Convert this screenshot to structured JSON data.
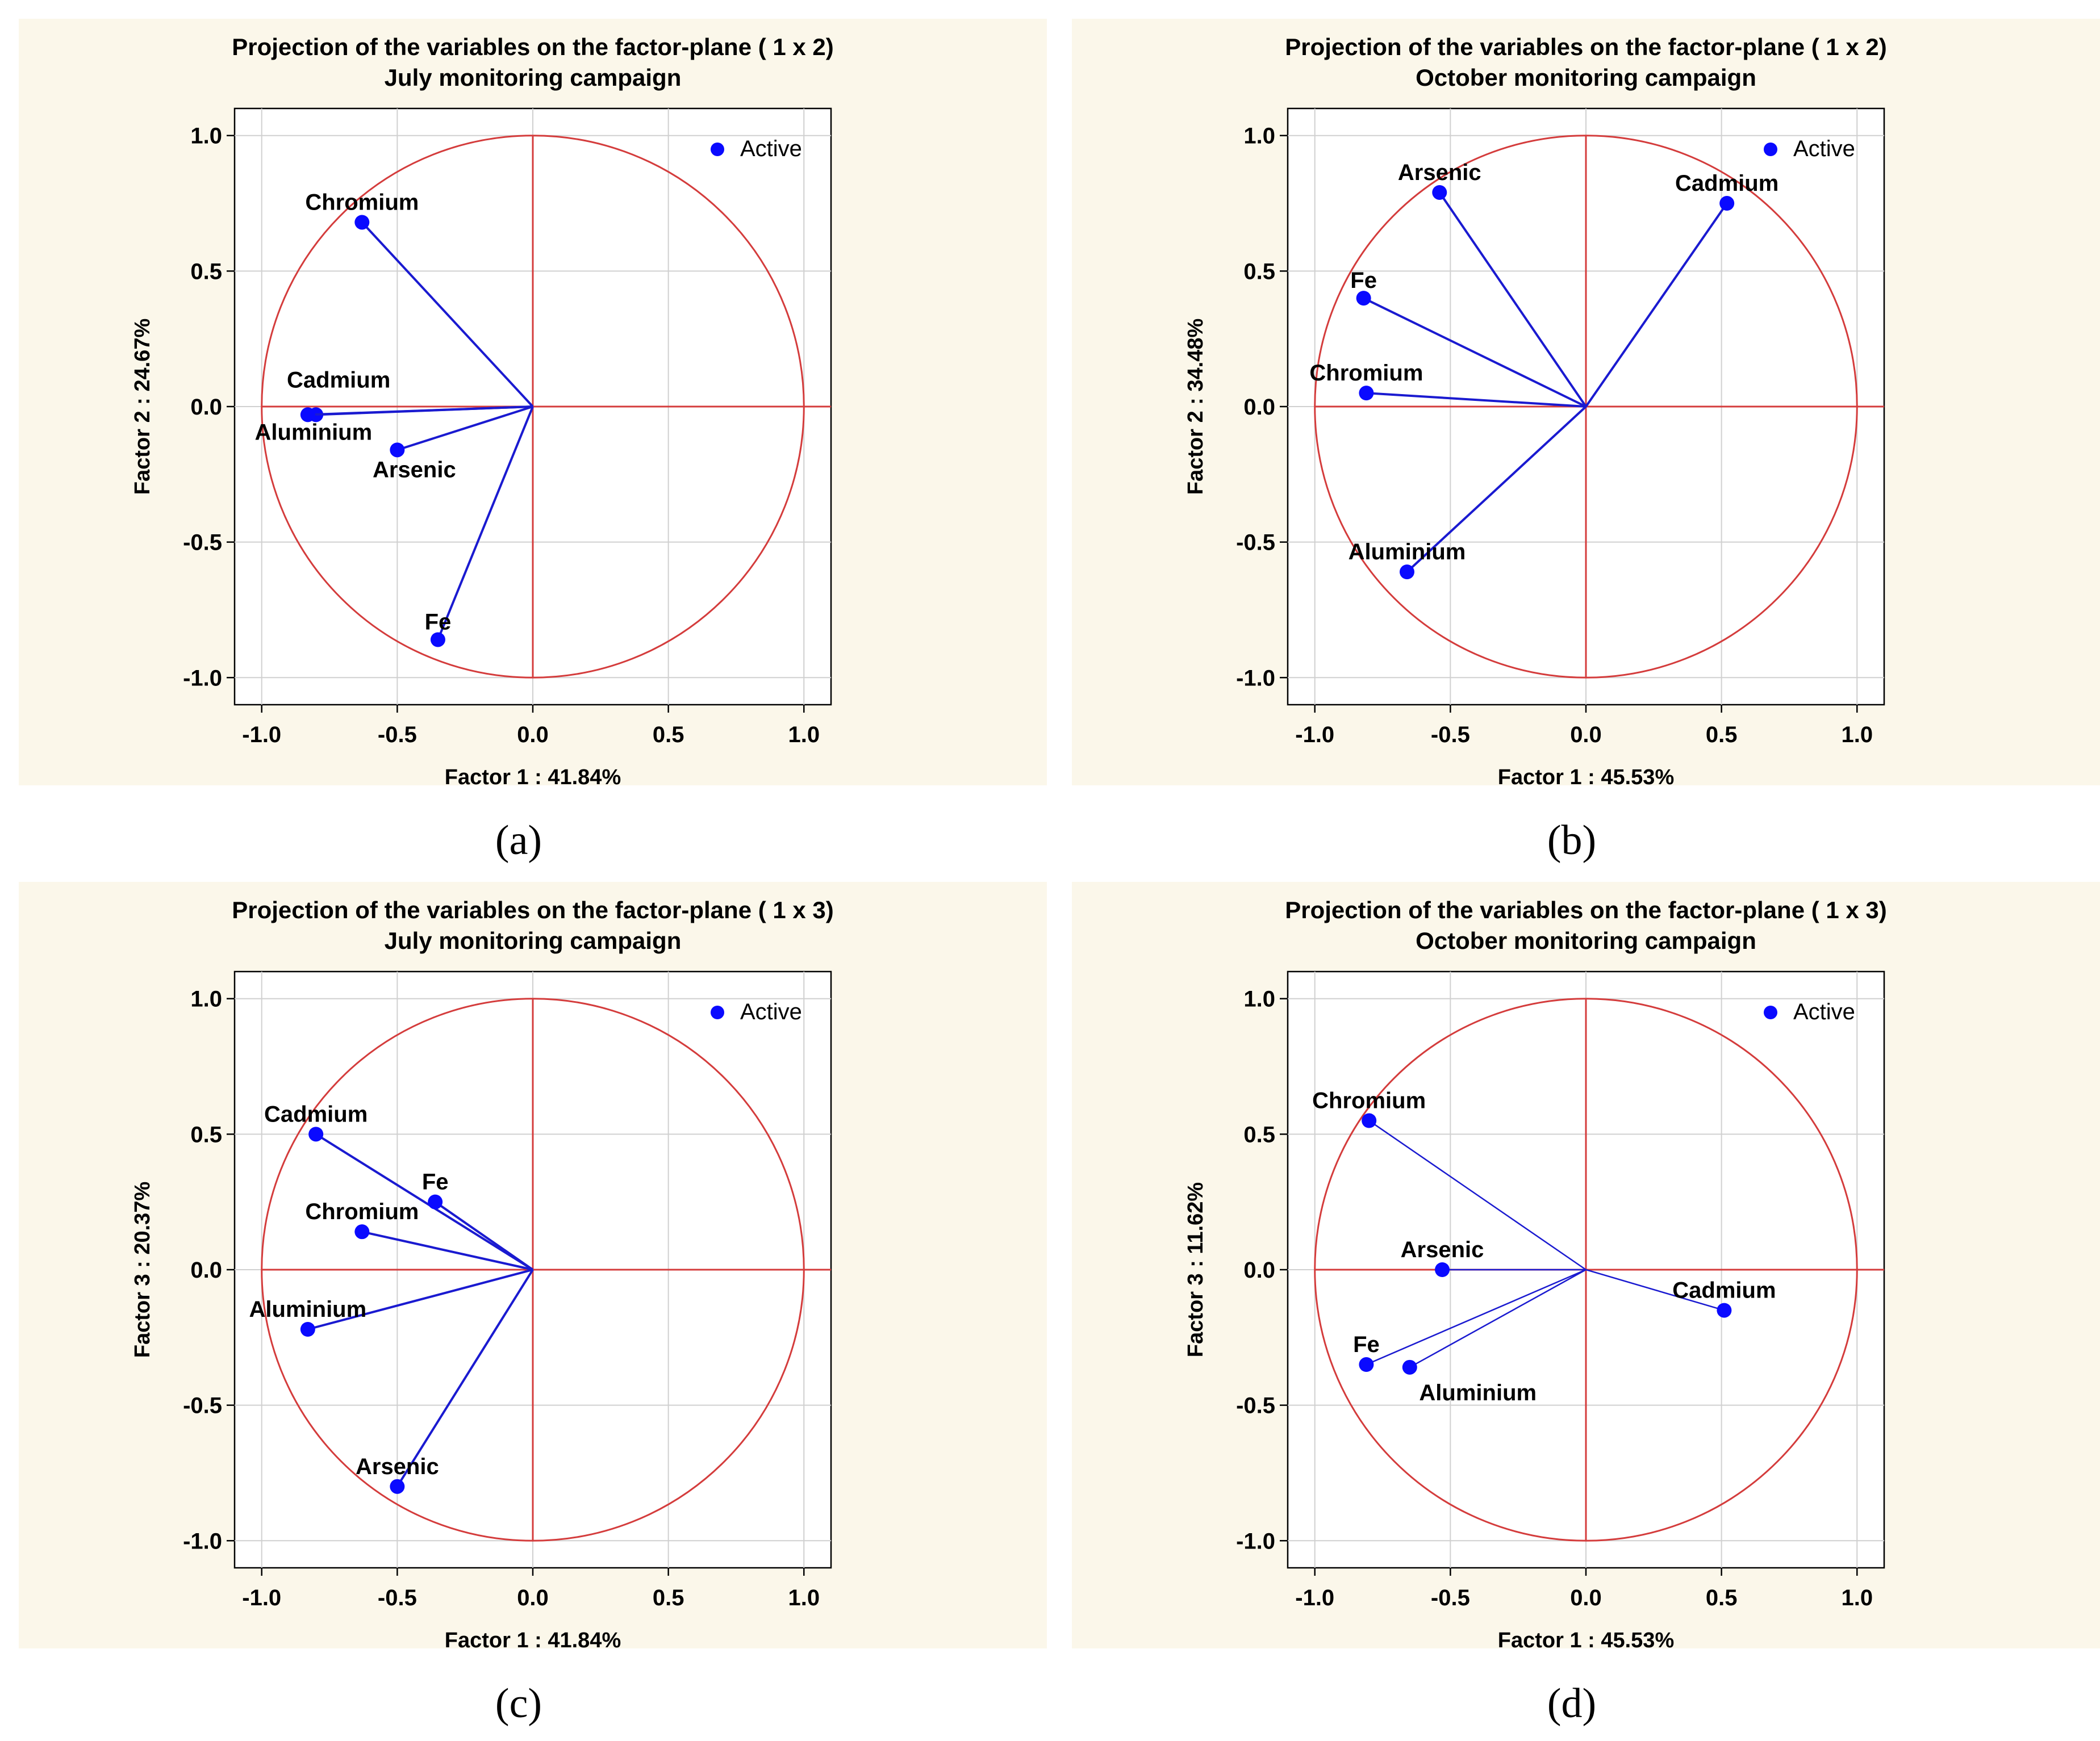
{
  "colors": {
    "panel_bg": "#fbf7ea",
    "circle": "#d43c3c",
    "vector": "#1a1ad0",
    "point": "#0a0aff",
    "grid": "#d0d0d0"
  },
  "figure": {
    "captions": [
      "(a)",
      "(b)",
      "(c)",
      "(d)"
    ]
  },
  "chart_data": [
    {
      "type": "scatter",
      "title": "Projection of the variables on the factor-plane (  1 x   2)",
      "subtitle": "July monitoring campaign",
      "xlabel": "Factor 1 : 41.84%",
      "ylabel": "Factor 2 : 24.67%",
      "xlim": [
        -1.1,
        1.1
      ],
      "ylim": [
        -1.1,
        1.1
      ],
      "xticks": [
        "-1.0",
        "-0.5",
        "0.0",
        "0.5",
        "1.0"
      ],
      "yticks": [
        "1.0",
        "0.5",
        "0.0",
        "-0.5",
        "-1.0"
      ],
      "grid": true,
      "unit_circle": true,
      "legend": "top-right",
      "series": [
        {
          "name": "Active",
          "points": [
            {
              "label": "Chromium",
              "x": -0.63,
              "y": 0.68
            },
            {
              "label": "Cadmium",
              "x": -0.8,
              "y": -0.03
            },
            {
              "label": "Aluminium",
              "x": -0.83,
              "y": -0.03
            },
            {
              "label": "Arsenic",
              "x": -0.5,
              "y": -0.16
            },
            {
              "label": "Fe",
              "x": -0.35,
              "y": -0.86
            }
          ]
        }
      ]
    },
    {
      "type": "scatter",
      "title": "Projection of the variables on the factor-plane (  1 x   2)",
      "subtitle": "October monitoring campaign",
      "xlabel": "Factor 1 : 45.53%",
      "ylabel": "Factor 2 : 34.48%",
      "xlim": [
        -1.1,
        1.1
      ],
      "ylim": [
        -1.1,
        1.1
      ],
      "xticks": [
        "-1.0",
        "-0.5",
        "0.0",
        "0.5",
        "1.0"
      ],
      "yticks": [
        "1.0",
        "0.5",
        "0.0",
        "-0.5",
        "-1.0"
      ],
      "grid": true,
      "unit_circle": true,
      "legend": "top-right",
      "series": [
        {
          "name": "Active",
          "points": [
            {
              "label": "Arsenic",
              "x": -0.54,
              "y": 0.79
            },
            {
              "label": "Cadmium",
              "x": 0.52,
              "y": 0.75
            },
            {
              "label": "Fe",
              "x": -0.82,
              "y": 0.4
            },
            {
              "label": "Chromium",
              "x": -0.81,
              "y": 0.05
            },
            {
              "label": "Aluminium",
              "x": -0.66,
              "y": -0.61
            }
          ]
        }
      ]
    },
    {
      "type": "scatter",
      "title": "Projection of the variables on the factor-plane (  1 x   3)",
      "subtitle": "July monitoring campaign",
      "xlabel": "Factor 1 : 41.84%",
      "ylabel": "Factor 3 : 20.37%",
      "xlim": [
        -1.1,
        1.1
      ],
      "ylim": [
        -1.1,
        1.1
      ],
      "xticks": [
        "-1.0",
        "-0.5",
        "0.0",
        "0.5",
        "1.0"
      ],
      "yticks": [
        "1.0",
        "0.5",
        "0.0",
        "-0.5",
        "-1.0"
      ],
      "grid": true,
      "unit_circle": true,
      "legend": "top-right",
      "series": [
        {
          "name": "Active",
          "points": [
            {
              "label": "Cadmium",
              "x": -0.8,
              "y": 0.5
            },
            {
              "label": "Fe",
              "x": -0.36,
              "y": 0.25
            },
            {
              "label": "Chromium",
              "x": -0.63,
              "y": 0.14
            },
            {
              "label": "Aluminium",
              "x": -0.83,
              "y": -0.22
            },
            {
              "label": "Arsenic",
              "x": -0.5,
              "y": -0.8
            }
          ]
        }
      ]
    },
    {
      "type": "scatter",
      "title": "Projection of the variables on the factor-plane (  1 x   3)",
      "subtitle": "October monitoring campaign",
      "xlabel": "Factor 1 : 45.53%",
      "ylabel": "Factor 3 : 11.62%",
      "xlim": [
        -1.1,
        1.1
      ],
      "ylim": [
        -1.1,
        1.1
      ],
      "xticks": [
        "-1.0",
        "-0.5",
        "0.0",
        "0.5",
        "1.0"
      ],
      "yticks": [
        "1.0",
        "0.5",
        "0.0",
        "-0.5",
        "-1.0"
      ],
      "grid": true,
      "unit_circle": true,
      "legend": "top-right",
      "series": [
        {
          "name": "Active",
          "points": [
            {
              "label": "Chromium",
              "x": -0.8,
              "y": 0.55
            },
            {
              "label": "Arsenic",
              "x": -0.53,
              "y": 0.0
            },
            {
              "label": "Cadmium",
              "x": 0.51,
              "y": -0.15
            },
            {
              "label": "Fe",
              "x": -0.81,
              "y": -0.35
            },
            {
              "label": "Aluminium",
              "x": -0.65,
              "y": -0.36
            }
          ]
        }
      ]
    }
  ]
}
